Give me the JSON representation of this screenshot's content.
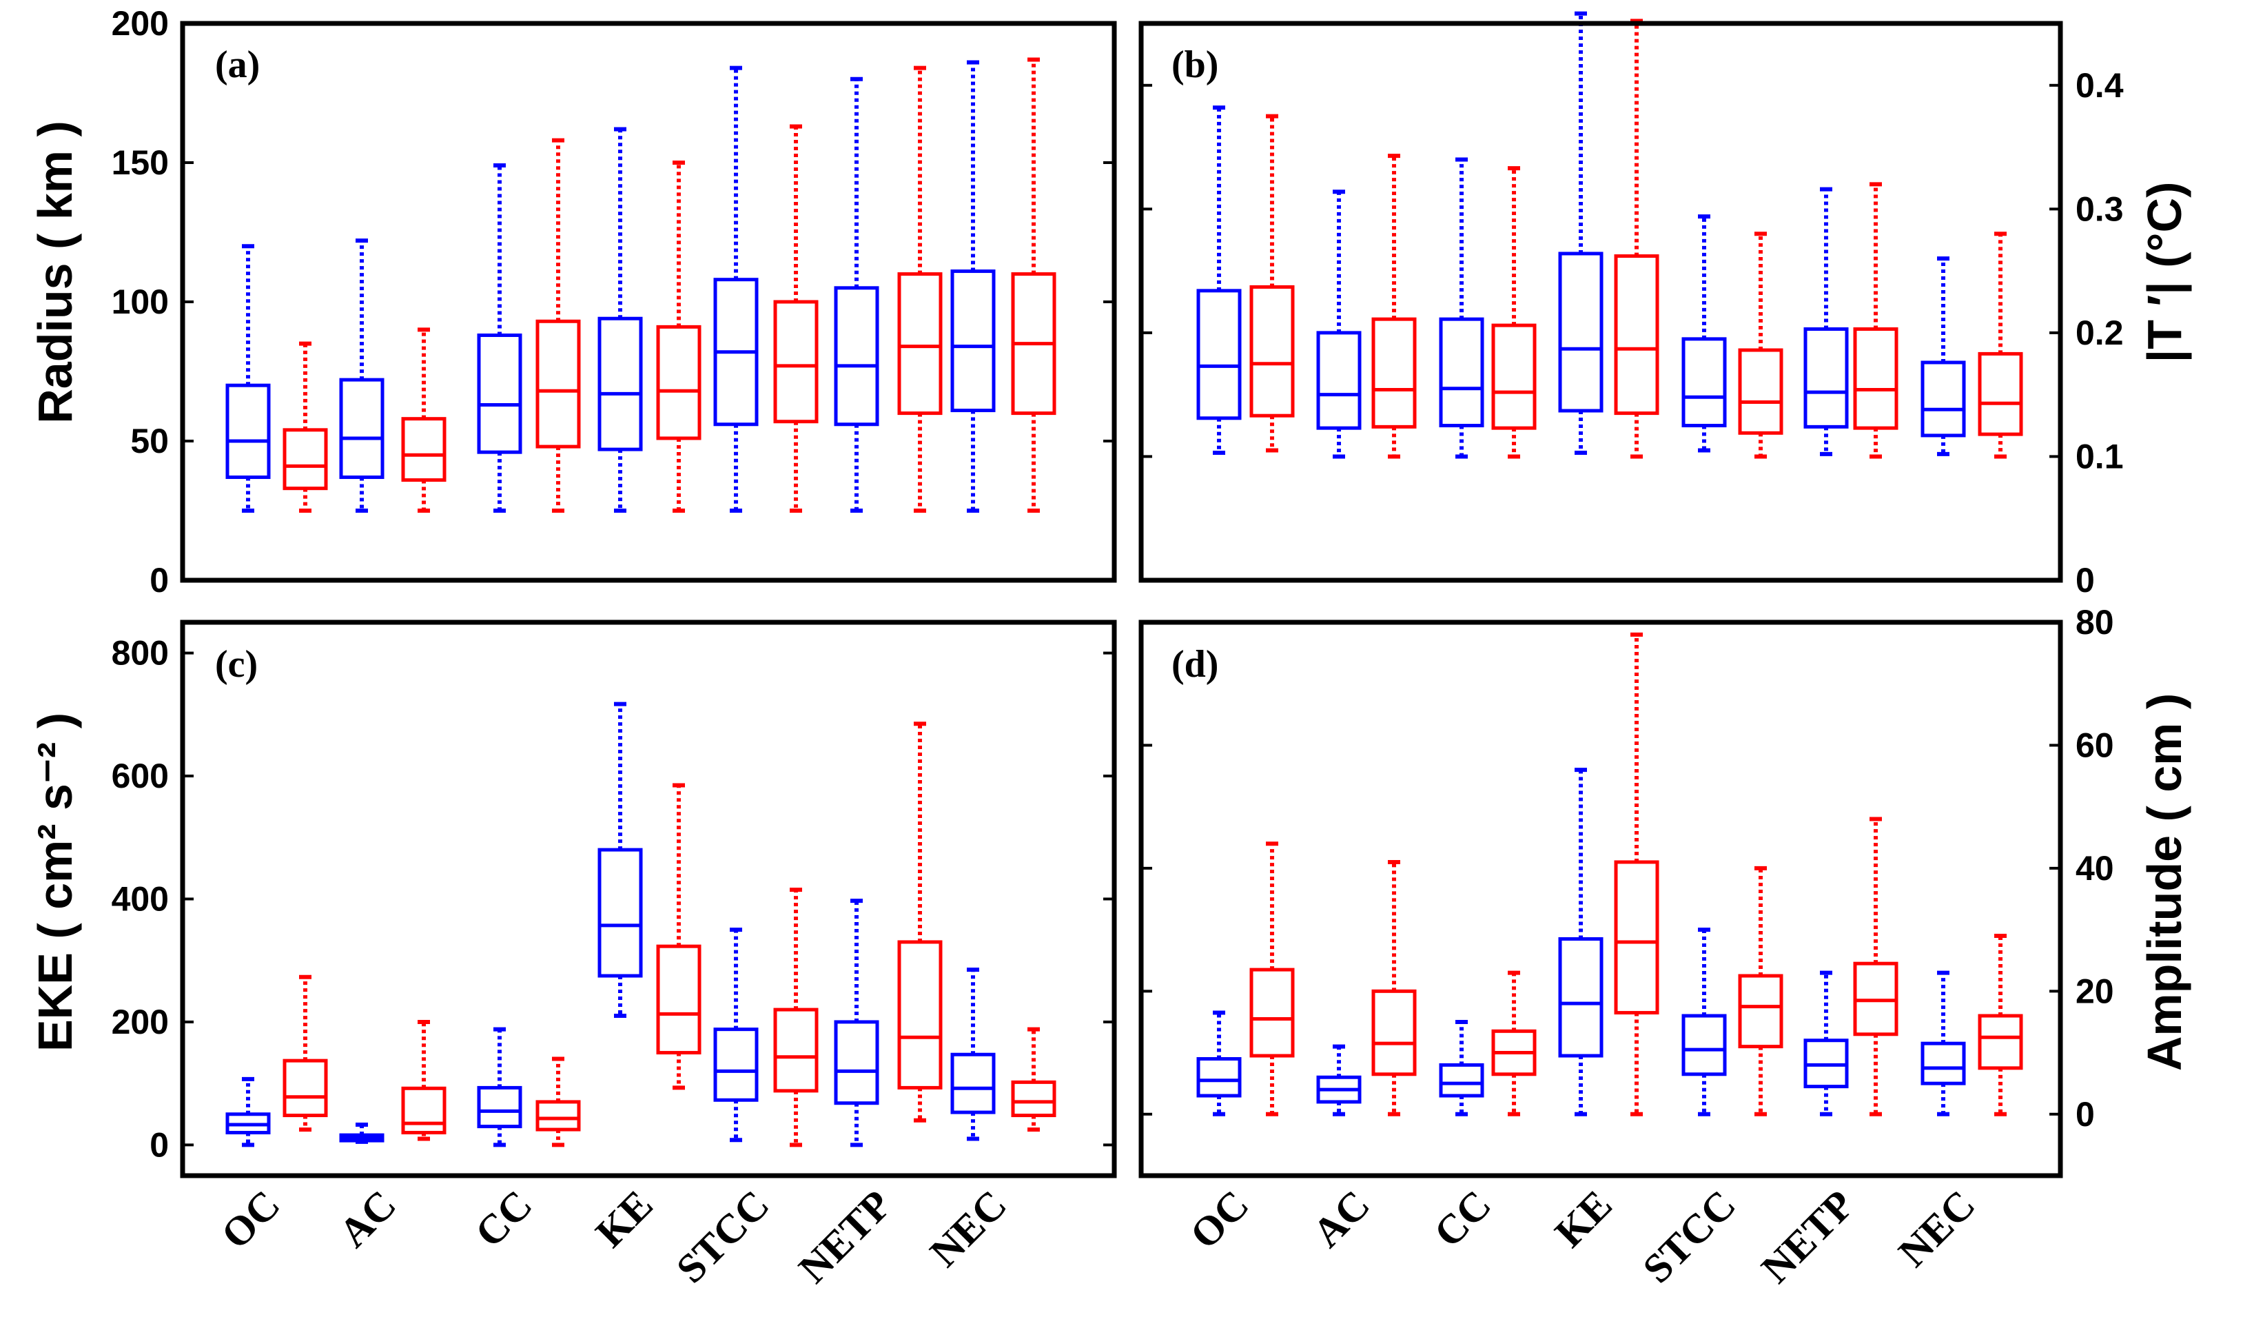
{
  "colors": {
    "blue": "#0000ff",
    "red": "#ff0000"
  },
  "categories": [
    "OC",
    "AC",
    "CC",
    "KE",
    "STCC",
    "NETP",
    "NEC"
  ],
  "chart_data": [
    {
      "type": "boxplot",
      "tag": "(a)",
      "ylabel": "Radius ( km )",
      "ylim": [
        0,
        200
      ],
      "yticks": [
        "0",
        "50",
        "100",
        "150",
        "200"
      ],
      "series": [
        {
          "name": "blue",
          "boxes": [
            {
              "min": 25,
              "q1": 37,
              "med": 50,
              "q3": 70,
              "max": 120
            },
            {
              "min": 25,
              "q1": 37,
              "med": 51,
              "q3": 72,
              "max": 122
            },
            {
              "min": 25,
              "q1": 46,
              "med": 63,
              "q3": 88,
              "max": 149
            },
            {
              "min": 25,
              "q1": 47,
              "med": 67,
              "q3": 94,
              "max": 162
            },
            {
              "min": 25,
              "q1": 56,
              "med": 82,
              "q3": 108,
              "max": 184
            },
            {
              "min": 25,
              "q1": 56,
              "med": 77,
              "q3": 105,
              "max": 180
            },
            {
              "min": 25,
              "q1": 61,
              "med": 84,
              "q3": 111,
              "max": 186
            }
          ]
        },
        {
          "name": "red",
          "boxes": [
            {
              "min": 25,
              "q1": 33,
              "med": 41,
              "q3": 54,
              "max": 85
            },
            {
              "min": 25,
              "q1": 36,
              "med": 45,
              "q3": 58,
              "max": 90
            },
            {
              "min": 25,
              "q1": 48,
              "med": 68,
              "q3": 93,
              "max": 158
            },
            {
              "min": 25,
              "q1": 51,
              "med": 68,
              "q3": 91,
              "max": 150
            },
            {
              "min": 25,
              "q1": 57,
              "med": 77,
              "q3": 100,
              "max": 163
            },
            {
              "min": 25,
              "q1": 60,
              "med": 84,
              "q3": 110,
              "max": 184
            },
            {
              "min": 25,
              "q1": 60,
              "med": 85,
              "q3": 110,
              "max": 187
            }
          ]
        }
      ]
    },
    {
      "type": "boxplot",
      "tag": "(b)",
      "ylabel": "|T ′| (°C)",
      "ylim": [
        0,
        0.45
      ],
      "yticks": [
        "0",
        "0.1",
        "0.2",
        "0.3",
        "0.4"
      ],
      "series": [
        {
          "name": "blue",
          "boxes": [
            {
              "min": 0.103,
              "q1": 0.131,
              "med": 0.173,
              "q3": 0.234,
              "max": 0.382
            },
            {
              "min": 0.1,
              "q1": 0.123,
              "med": 0.15,
              "q3": 0.2,
              "max": 0.314
            },
            {
              "min": 0.1,
              "q1": 0.125,
              "med": 0.155,
              "q3": 0.211,
              "max": 0.34
            },
            {
              "min": 0.103,
              "q1": 0.137,
              "med": 0.187,
              "q3": 0.264,
              "max": 0.458
            },
            {
              "min": 0.105,
              "q1": 0.125,
              "med": 0.148,
              "q3": 0.195,
              "max": 0.294
            },
            {
              "min": 0.102,
              "q1": 0.124,
              "med": 0.152,
              "q3": 0.203,
              "max": 0.316
            },
            {
              "min": 0.102,
              "q1": 0.117,
              "med": 0.138,
              "q3": 0.176,
              "max": 0.26
            }
          ]
        },
        {
          "name": "red",
          "boxes": [
            {
              "min": 0.105,
              "q1": 0.133,
              "med": 0.175,
              "q3": 0.237,
              "max": 0.375
            },
            {
              "min": 0.1,
              "q1": 0.124,
              "med": 0.154,
              "q3": 0.211,
              "max": 0.343
            },
            {
              "min": 0.1,
              "q1": 0.123,
              "med": 0.152,
              "q3": 0.206,
              "max": 0.333
            },
            {
              "min": 0.1,
              "q1": 0.135,
              "med": 0.187,
              "q3": 0.262,
              "max": 0.452
            },
            {
              "min": 0.1,
              "q1": 0.119,
              "med": 0.144,
              "q3": 0.186,
              "max": 0.28
            },
            {
              "min": 0.1,
              "q1": 0.123,
              "med": 0.154,
              "q3": 0.203,
              "max": 0.32
            },
            {
              "min": 0.1,
              "q1": 0.118,
              "med": 0.143,
              "q3": 0.183,
              "max": 0.28
            }
          ]
        }
      ]
    },
    {
      "type": "boxplot",
      "tag": "(c)",
      "ylabel": "EKE ( cm² s⁻² )",
      "ylim": [
        -50,
        850
      ],
      "yticks": [
        "0",
        "200",
        "400",
        "600",
        "800"
      ],
      "series": [
        {
          "name": "blue",
          "boxes": [
            {
              "min": 0,
              "q1": 20,
              "med": 33,
              "q3": 50,
              "max": 107
            },
            {
              "min": 5,
              "q1": 7,
              "med": 11,
              "q3": 16,
              "max": 33
            },
            {
              "min": 0,
              "q1": 30,
              "med": 55,
              "q3": 93,
              "max": 188
            },
            {
              "min": 210,
              "q1": 275,
              "med": 357,
              "q3": 480,
              "max": 717
            },
            {
              "min": 8,
              "q1": 73,
              "med": 120,
              "q3": 188,
              "max": 350
            },
            {
              "min": 0,
              "q1": 68,
              "med": 120,
              "q3": 200,
              "max": 397
            },
            {
              "min": 10,
              "q1": 53,
              "med": 92,
              "q3": 147,
              "max": 285
            }
          ]
        },
        {
          "name": "red",
          "boxes": [
            {
              "min": 25,
              "q1": 48,
              "med": 78,
              "q3": 137,
              "max": 273
            },
            {
              "min": 10,
              "q1": 20,
              "med": 35,
              "q3": 92,
              "max": 200
            },
            {
              "min": 0,
              "q1": 25,
              "med": 43,
              "q3": 70,
              "max": 140
            },
            {
              "min": 93,
              "q1": 150,
              "med": 213,
              "q3": 323,
              "max": 585
            },
            {
              "min": 0,
              "q1": 88,
              "med": 143,
              "q3": 220,
              "max": 415
            },
            {
              "min": 40,
              "q1": 93,
              "med": 175,
              "q3": 330,
              "max": 685
            },
            {
              "min": 25,
              "q1": 48,
              "med": 70,
              "q3": 102,
              "max": 188
            }
          ]
        }
      ]
    },
    {
      "type": "boxplot",
      "tag": "(d)",
      "ylabel": "Amplitude ( cm )",
      "ylim": [
        -10,
        80
      ],
      "yticks": [
        "0",
        "20",
        "40",
        "60",
        "80"
      ],
      "series": [
        {
          "name": "blue",
          "boxes": [
            {
              "min": 0,
              "q1": 3,
              "med": 5.5,
              "q3": 9,
              "max": 16.5
            },
            {
              "min": 0,
              "q1": 2,
              "med": 4,
              "q3": 6,
              "max": 11
            },
            {
              "min": 0,
              "q1": 3,
              "med": 5,
              "q3": 8,
              "max": 15
            },
            {
              "min": 0,
              "q1": 9.5,
              "med": 18,
              "q3": 28.5,
              "max": 56
            },
            {
              "min": 0,
              "q1": 6.5,
              "med": 10.5,
              "q3": 16,
              "max": 30
            },
            {
              "min": 0,
              "q1": 4.5,
              "med": 8,
              "q3": 12,
              "max": 23
            },
            {
              "min": 0,
              "q1": 5,
              "med": 7.5,
              "q3": 11.5,
              "max": 23
            }
          ]
        },
        {
          "name": "red",
          "boxes": [
            {
              "min": 0,
              "q1": 9.5,
              "med": 15.5,
              "q3": 23.5,
              "max": 44
            },
            {
              "min": 0,
              "q1": 6.5,
              "med": 11.5,
              "q3": 20,
              "max": 41
            },
            {
              "min": 0,
              "q1": 6.5,
              "med": 10,
              "q3": 13.5,
              "max": 23
            },
            {
              "min": 0,
              "q1": 16.5,
              "med": 28,
              "q3": 41,
              "max": 78
            },
            {
              "min": 0,
              "q1": 11,
              "med": 17.5,
              "q3": 22.5,
              "max": 40
            },
            {
              "min": 0,
              "q1": 13,
              "med": 18.5,
              "q3": 24.5,
              "max": 48
            },
            {
              "min": 0,
              "q1": 7.5,
              "med": 12.5,
              "q3": 16,
              "max": 29
            }
          ]
        }
      ]
    }
  ]
}
